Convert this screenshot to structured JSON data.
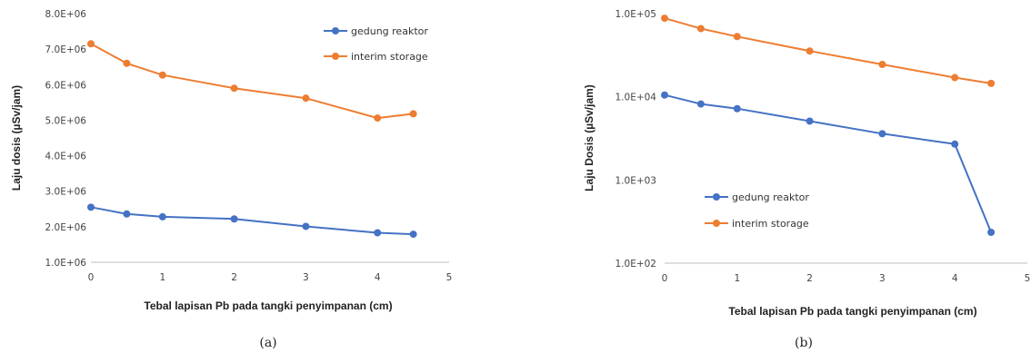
{
  "chart_data": [
    {
      "type": "line",
      "panel_label": "(a)",
      "xlabel": "Tebal lapisan Pb pada tangki penyimpanan (cm)",
      "ylabel": "Laju dosis (µSv/jam)",
      "x": [
        0,
        0.5,
        1,
        2,
        3,
        4,
        4.5
      ],
      "xlim": [
        0,
        5
      ],
      "xticks": [
        "0",
        "1",
        "2",
        "3",
        "4",
        "5"
      ],
      "ylim": [
        1000000,
        8000000
      ],
      "yscale": "linear",
      "yticks": [
        "1.0E+06",
        "2.0E+06",
        "3.0E+06",
        "4.0E+06",
        "5.0E+06",
        "6.0E+06",
        "7.0E+06",
        "8.0E+06"
      ],
      "grid": false,
      "legend_position": "top-right",
      "series": [
        {
          "name": "gedung reaktor",
          "color": "#4472C4",
          "values": [
            2550000,
            2360000,
            2280000,
            2220000,
            2010000,
            1830000,
            1790000
          ]
        },
        {
          "name": "interim storage",
          "color": "#ED7D31",
          "values": [
            7150000,
            6600000,
            6270000,
            5900000,
            5620000,
            5060000,
            5180000
          ]
        }
      ]
    },
    {
      "type": "line",
      "panel_label": "(b)",
      "xlabel": "Tebal lapisan Pb pada tangki penyimpanan (cm)",
      "ylabel": "Laju Dosis (µSv/jam)",
      "x": [
        0,
        0.5,
        1,
        2,
        3,
        4,
        4.5
      ],
      "xlim": [
        0,
        5
      ],
      "xticks": [
        "0",
        "1",
        "2",
        "3",
        "4",
        "5"
      ],
      "ylim": [
        100,
        100000
      ],
      "yscale": "log",
      "yticks": [
        "1.0E+02",
        "1.0E+03",
        "1.0E+04",
        "1.0E+05"
      ],
      "grid": false,
      "legend_position": "bottom-left",
      "series": [
        {
          "name": "gedung reaktor",
          "color": "#4472C4",
          "values": [
            10500,
            8200,
            7200,
            5100,
            3600,
            2700,
            235
          ]
        },
        {
          "name": "interim storage",
          "color": "#ED7D31",
          "values": [
            88000,
            66000,
            53000,
            35500,
            24500,
            17000,
            14500
          ]
        }
      ]
    }
  ]
}
